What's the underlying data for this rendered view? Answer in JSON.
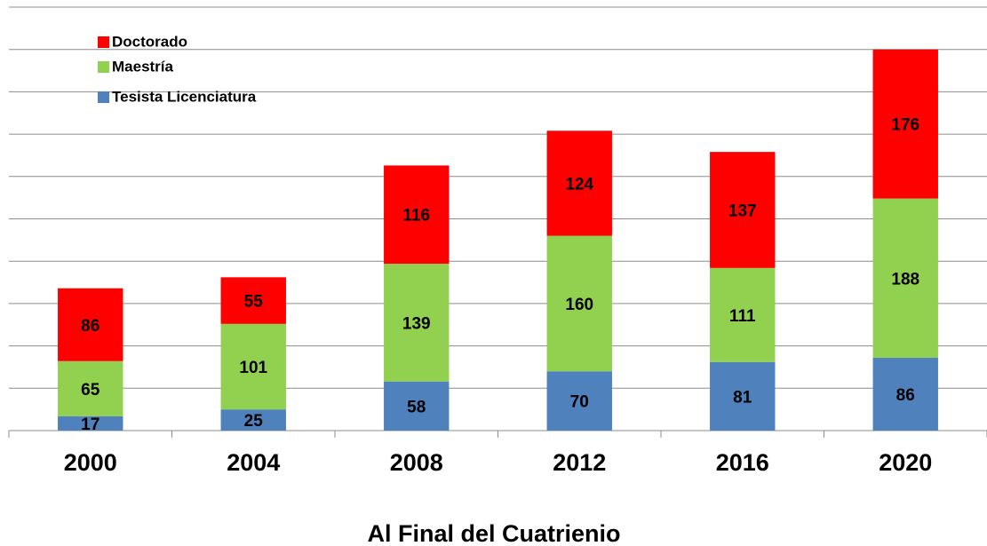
{
  "chart_data": {
    "type": "stacked_bar",
    "x_label": "Al Final del Cuatrienio",
    "categories": [
      "2000",
      "2004",
      "2008",
      "2012",
      "2016",
      "2020"
    ],
    "series": [
      {
        "name": "Tesista Licenciatura",
        "color": "#4f81bd",
        "values": [
          17,
          25,
          58,
          70,
          81,
          86
        ]
      },
      {
        "name": "Maestría",
        "color": "#92d050",
        "values": [
          65,
          101,
          139,
          160,
          111,
          188
        ]
      },
      {
        "name": "Doctorado",
        "color": "#ff0000",
        "values": [
          86,
          55,
          116,
          124,
          137,
          176
        ]
      }
    ],
    "ylim": [
      0,
      500
    ],
    "yticks": [
      0,
      50,
      100,
      150,
      200,
      250,
      300,
      350,
      400,
      450,
      500
    ],
    "grid": true,
    "legend": "upper left"
  }
}
